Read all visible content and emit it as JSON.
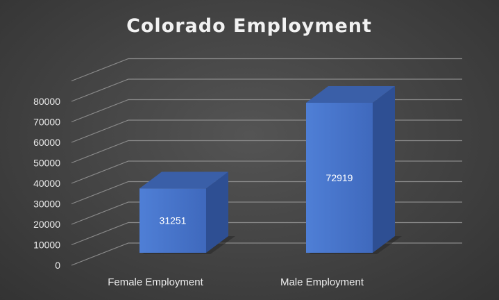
{
  "chart_data": {
    "type": "bar",
    "title": "Colorado Employment",
    "xlabel": "",
    "ylabel": "",
    "categories": [
      "Female Employment",
      "Male Employment"
    ],
    "values": [
      31251,
      72919
    ],
    "data_labels": [
      "31251",
      "72919"
    ],
    "ylim": [
      0,
      80000
    ],
    "y_ticks": [
      "0",
      "10000",
      "20000",
      "30000",
      "40000",
      "50000",
      "60000",
      "70000",
      "80000"
    ],
    "grid": true,
    "legend": "none",
    "style": "3d-column",
    "colors": {
      "bar_front": "#4472c4",
      "bar_side": "#2e4f93",
      "bar_top": "#3a5fa8",
      "gridline": "#8a8a8a",
      "background": "#404040",
      "text": "#ececec"
    }
  }
}
